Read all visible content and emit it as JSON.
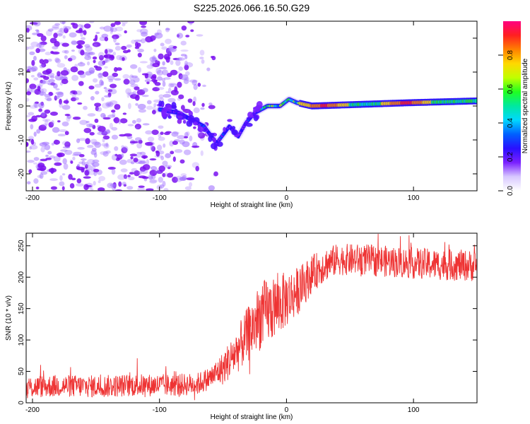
{
  "title": "S225.2026.066.16.50.G29",
  "colors": {
    "snr_line": "#ee3333",
    "scatter_noise": "#a070ff",
    "scatter_dark": "#7a10f0",
    "colorbar": [
      "#ffffff",
      "#d8c8ff",
      "#7a20ff",
      "#2a10ff",
      "#0060ff",
      "#00d8ff",
      "#00e8a0",
      "#20ff20",
      "#c0ff00",
      "#ffd800",
      "#ff8000",
      "#ff2020",
      "#ff0080"
    ]
  },
  "chart_data": [
    {
      "type": "heatmap",
      "name": "spectrogram",
      "xlabel": "Height of straight line (km)",
      "ylabel": "Frequency (Hz)",
      "xlim": [
        -205,
        150
      ],
      "ylim": [
        -25,
        25
      ],
      "x_ticks": [
        -200,
        -100,
        0,
        100
      ],
      "x_tick_labels": [
        "-200",
        "-100",
        "0",
        "100"
      ],
      "y_ticks": [
        -20,
        -10,
        0,
        10,
        20
      ],
      "y_tick_labels": [
        "-20",
        "-10",
        "0",
        "10",
        "20"
      ],
      "ridge": {
        "description_points": [
          {
            "x": -100,
            "y": -1
          },
          {
            "x": -85,
            "y": -2
          },
          {
            "x": -65,
            "y": -6
          },
          {
            "x": -55,
            "y": -11
          },
          {
            "x": -45,
            "y": -6
          },
          {
            "x": -38,
            "y": -9
          },
          {
            "x": -32,
            "y": -5
          },
          {
            "x": -25,
            "y": -2
          },
          {
            "x": -15,
            "y": 0
          },
          {
            "x": -5,
            "y": 0
          },
          {
            "x": 2,
            "y": 2
          },
          {
            "x": 8,
            "y": 1
          },
          {
            "x": 20,
            "y": 0
          },
          {
            "x": 60,
            "y": 0.5
          },
          {
            "x": 100,
            "y": 1
          },
          {
            "x": 150,
            "y": 1.5
          }
        ],
        "peak_amplitude_regions": [
          {
            "x_start": 10,
            "x_end": 50,
            "y": 0,
            "amplitude": 0.9
          },
          {
            "x_start": 75,
            "x_end": 115,
            "y": 1,
            "amplitude": 0.92
          }
        ]
      }
    },
    {
      "type": "colorbar",
      "label": "Normalized spectral amplitude",
      "range": [
        0,
        1
      ],
      "ticks": [
        0.0,
        0.2,
        0.4,
        0.6,
        0.8
      ],
      "tick_labels": [
        "0.0",
        "0.2",
        "0.4",
        "0.6",
        "0.8"
      ]
    },
    {
      "type": "line",
      "name": "snr",
      "xlabel": "Height of straight line (km)",
      "ylabel": "SNR (10 * v/v)",
      "xlim": [
        -205,
        150
      ],
      "ylim": [
        0,
        270
      ],
      "x_ticks": [
        -200,
        -100,
        0,
        100
      ],
      "x_tick_labels": [
        "-200",
        "-100",
        "0",
        "100"
      ],
      "y_ticks": [
        0,
        50,
        100,
        150,
        200,
        250
      ],
      "y_tick_labels": [
        "0",
        "50",
        "100",
        "150",
        "200",
        "250"
      ],
      "trend": {
        "x": [
          -205,
          -180,
          -150,
          -120,
          -90,
          -70,
          -60,
          -50,
          -40,
          -30,
          -20,
          -10,
          0,
          10,
          20,
          30,
          40,
          60,
          80,
          100,
          120,
          150
        ],
        "y": [
          25,
          27,
          26,
          28,
          28,
          30,
          40,
          55,
          80,
          110,
          140,
          150,
          165,
          180,
          205,
          220,
          228,
          228,
          225,
          222,
          220,
          218
        ]
      },
      "noise_amplitude": {
        "x": [
          -205,
          -60,
          -40,
          -20,
          0,
          20,
          40,
          150
        ],
        "y": [
          18,
          18,
          35,
          55,
          45,
          30,
          25,
          25
        ]
      }
    }
  ]
}
